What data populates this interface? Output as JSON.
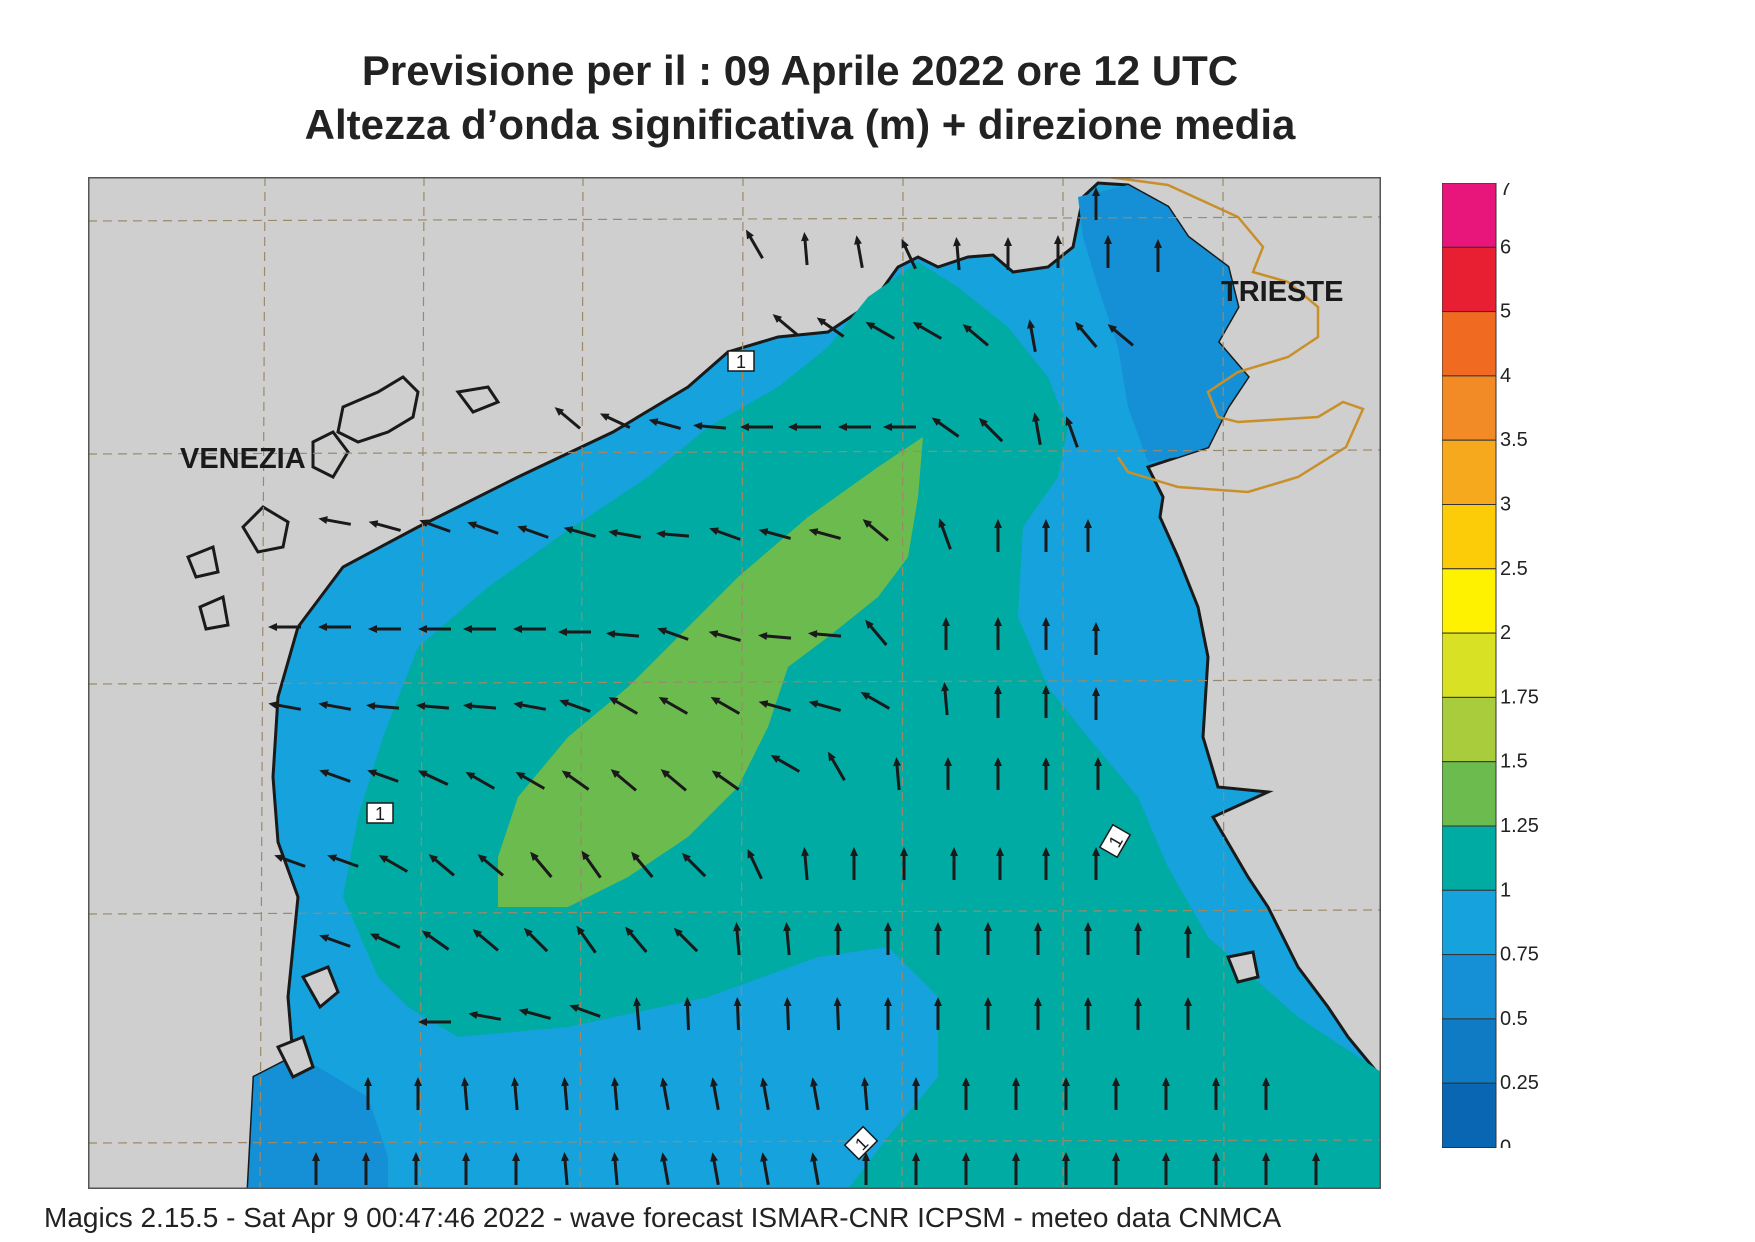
{
  "title": {
    "line1": "Previsione per il  :  09   Aprile  2022   ore 12 UTC",
    "line2": "Altezza d’onda significativa (m) + direzione media"
  },
  "map": {
    "labels": {
      "venezia": "VENEZIA",
      "trieste": "TRIESTE"
    },
    "contour_labels": [
      "1",
      "1",
      "1",
      "1"
    ],
    "colors": {
      "land": "#cfcfcf",
      "coast": "#1a1a1a",
      "border": "#c98f2a",
      "grid": "#9a8a6a"
    }
  },
  "legend": {
    "levels": [
      {
        "label": "7",
        "color": "#e8157a"
      },
      {
        "label": "6",
        "color": "#e81f32"
      },
      {
        "label": "5",
        "color": "#f06a22"
      },
      {
        "label": "4",
        "color": "#f28a26"
      },
      {
        "label": "3.5",
        "color": "#f7a91d"
      },
      {
        "label": "3",
        "color": "#fdcc09"
      },
      {
        "label": "2.5",
        "color": "#fff200"
      },
      {
        "label": "2",
        "color": "#d8e124"
      },
      {
        "label": "1.75",
        "color": "#a8cc3c"
      },
      {
        "label": "1.5",
        "color": "#6cbb4e"
      },
      {
        "label": "1.25",
        "color": "#00aba3"
      },
      {
        "label": "1",
        "color": "#16a2dd"
      },
      {
        "label": "0.75",
        "color": "#1590d6"
      },
      {
        "label": "0.5",
        "color": "#0e7bc4"
      },
      {
        "label": "0.25",
        "color": "#0866b2"
      },
      {
        "label": "0",
        "color": ""
      }
    ]
  },
  "footer": "Magics 2.15.5 - Sat Apr  9 00:47:46 2022 - wave forecast  ISMAR-CNR  ICPSM - meteo data   CNMCA"
}
